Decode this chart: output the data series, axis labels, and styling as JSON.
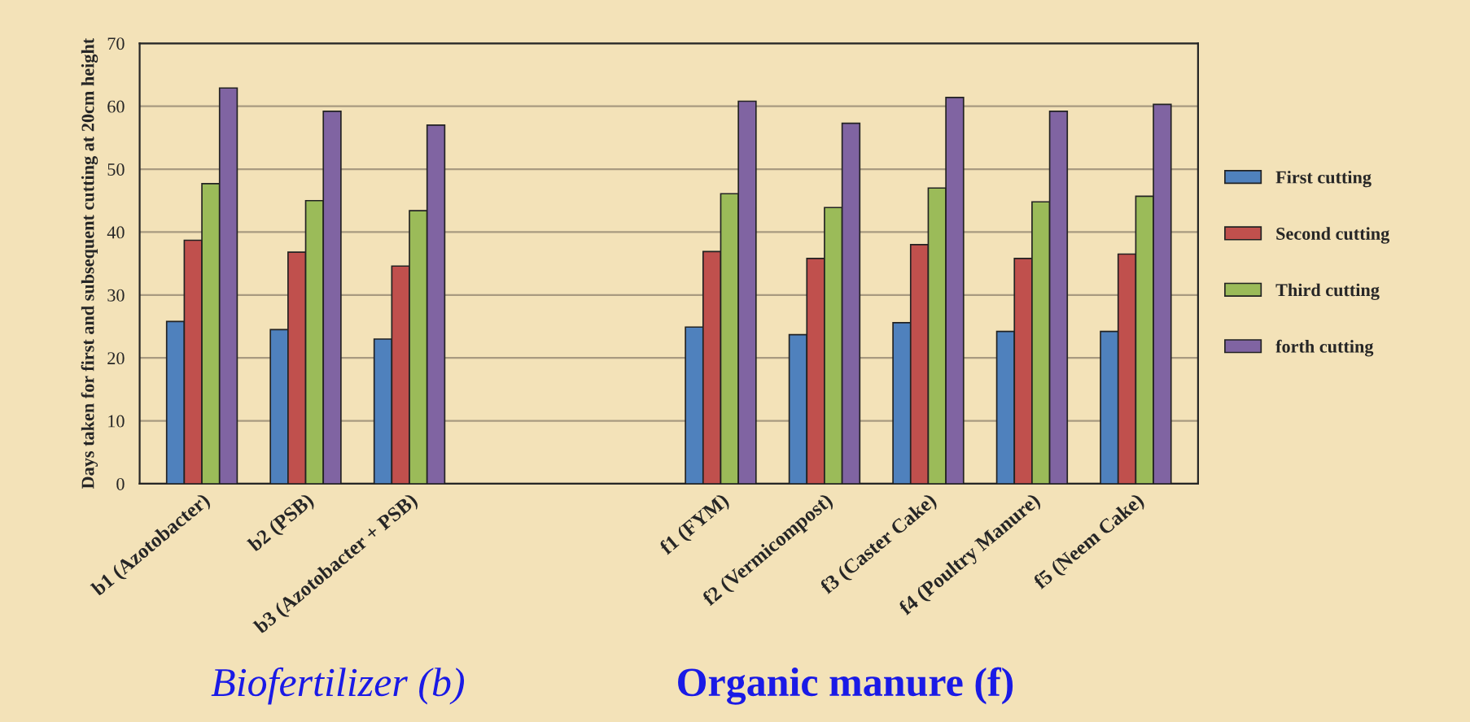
{
  "chart_data": {
    "type": "bar",
    "ylabel": "Days taken for first and subsequent cutting at 20cm height",
    "categories": [
      "b1 (Azotobacter)",
      "b2 (PSB)",
      "b3 (Azotobacter + PSB)",
      null,
      null,
      "f1 (FYM)",
      "f2 (Vermicompost)",
      "f3 (Caster Cake)",
      "f4 (Poultry Manure)",
      "f5 (Neem Cake)"
    ],
    "series": [
      {
        "name": "First cutting",
        "color": "#4f81bd",
        "values": [
          25.8,
          24.5,
          23.0,
          null,
          null,
          24.9,
          23.7,
          25.6,
          24.2,
          24.2
        ]
      },
      {
        "name": "Second cutting",
        "color": "#c0504d",
        "values": [
          38.7,
          36.8,
          34.6,
          null,
          null,
          36.9,
          35.8,
          38.0,
          35.8,
          36.5
        ]
      },
      {
        "name": "Third cutting",
        "color": "#9bbb59",
        "values": [
          47.7,
          45.0,
          43.4,
          null,
          null,
          46.1,
          43.9,
          47.0,
          44.8,
          45.7
        ]
      },
      {
        "name": "forth cutting",
        "color": "#8064a2",
        "values": [
          62.9,
          59.2,
          57.0,
          null,
          null,
          60.8,
          57.3,
          61.4,
          59.2,
          60.3
        ]
      }
    ],
    "ylim": [
      0,
      70
    ],
    "yticks": [
      0,
      10,
      20,
      30,
      40,
      50,
      60,
      70
    ],
    "grid": "y",
    "legend": "right",
    "annotations": [
      "Biofertilizer (b)",
      "Organic manure (f)"
    ]
  }
}
